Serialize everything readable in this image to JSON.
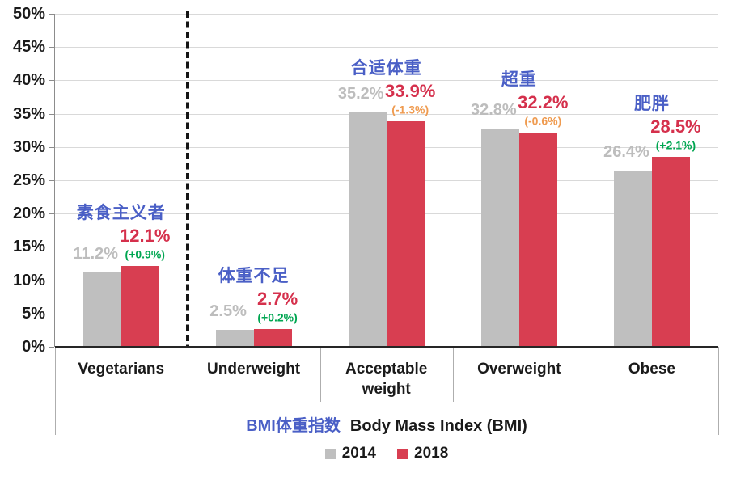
{
  "chart_data": {
    "type": "bar",
    "title": "",
    "ylim": [
      0,
      50
    ],
    "ytick_step_pct": 5,
    "ytick_labels": [
      "0%",
      "5%",
      "10%",
      "15%",
      "20%",
      "25%",
      "30%",
      "35%",
      "40%",
      "45%",
      "50%"
    ],
    "series": [
      {
        "name": "2014",
        "color": "#BFBFBF"
      },
      {
        "name": "2018",
        "color": "#D83E51"
      }
    ],
    "categories": [
      {
        "label_en": "Vegetarians",
        "label_zh": "素食主义者",
        "group": "vegetarians",
        "value_2014": 11.2,
        "value_2018": 12.1,
        "label_2014": "11.2%",
        "label_2018": "12.1%",
        "change_label": "(+0.9%)",
        "change_direction": "positive"
      },
      {
        "label_en": "Underweight",
        "label_zh": "体重不足",
        "group": "bmi",
        "value_2014": 2.5,
        "value_2018": 2.7,
        "label_2014": "2.5%",
        "label_2018": "2.7%",
        "change_label": "(+0.2%)",
        "change_direction": "positive"
      },
      {
        "label_en": "Acceptable weight",
        "label_zh": "合适体重",
        "group": "bmi",
        "value_2014": 35.2,
        "value_2018": 33.9,
        "label_2014": "35.2%",
        "label_2018": "33.9%",
        "change_label": "(-1.3%)",
        "change_direction": "negative"
      },
      {
        "label_en": "Overweight",
        "label_zh": "超重",
        "group": "bmi",
        "value_2014": 32.8,
        "value_2018": 32.2,
        "label_2014": "32.8%",
        "label_2018": "32.2%",
        "change_label": "(-0.6%)",
        "change_direction": "negative"
      },
      {
        "label_en": "Obese",
        "label_zh": "肥胖",
        "group": "bmi",
        "value_2014": 26.4,
        "value_2018": 28.5,
        "label_2014": "26.4%",
        "label_2018": "28.5%",
        "change_label": "(+2.1%)",
        "change_direction": "positive"
      }
    ],
    "x_axis_group_label": {
      "zh": "BMI体重指数",
      "en": "Body Mass Index (BMI)"
    },
    "legend_entries": [
      "2014",
      "2018"
    ],
    "colors": {
      "bar_2014": "#BFBFBF",
      "bar_2018": "#D83E51",
      "value_2014_text": "#BDBDBD",
      "value_2018_text": "#D5304C",
      "category_zh_text": "#4A5FC6",
      "positive_change": "#00A651",
      "negative_change": "#EF9B50",
      "axis_text": "#1A1A1A",
      "gridline": "#D9D9D9"
    },
    "layout_hints": {
      "grid": "horizontal",
      "legend_position": "bottom",
      "divider_after_category": "Vegetarians"
    }
  }
}
